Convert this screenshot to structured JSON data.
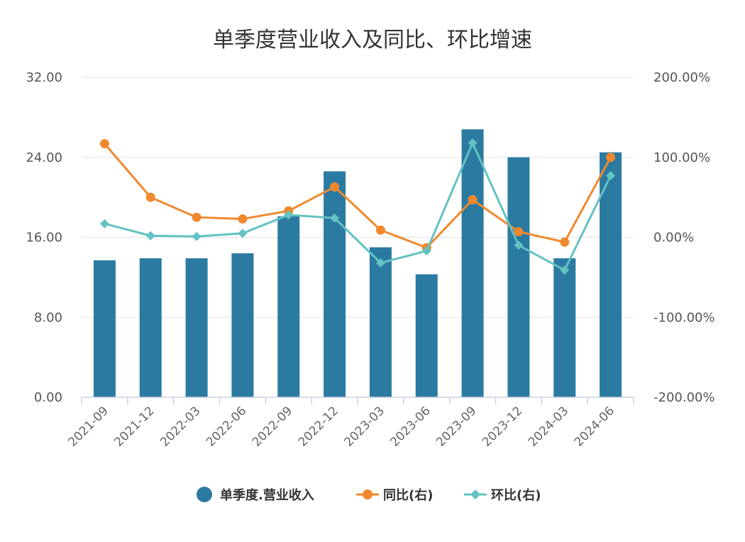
{
  "chart_data": {
    "type": "bar",
    "title": "单季度营业收入及同比、环比增速",
    "categories": [
      "2021-09",
      "2021-12",
      "2022-03",
      "2022-06",
      "2022-09",
      "2022-12",
      "2023-03",
      "2023-06",
      "2023-09",
      "2023-12",
      "2024-03",
      "2024-06"
    ],
    "y_left": {
      "ticks": [
        "0.00",
        "8.00",
        "16.00",
        "24.00",
        "32.00"
      ],
      "range": [
        0,
        32
      ]
    },
    "y_right": {
      "ticks": [
        "-200.00%",
        "-100.00%",
        "0.00%",
        "100.00%",
        "200.00%"
      ],
      "range": [
        -200,
        200
      ]
    },
    "series": [
      {
        "name": "单季度.营业收入",
        "kind": "bar",
        "axis": "left",
        "color": "#2b7aa1",
        "values": [
          13.7,
          13.9,
          13.9,
          14.4,
          18.1,
          22.6,
          15.0,
          12.3,
          26.8,
          24.0,
          13.9,
          24.5
        ]
      },
      {
        "name": "同比(右)",
        "kind": "line",
        "axis": "right",
        "color": "#f0892e",
        "marker": "circle",
        "values": [
          117,
          50,
          25,
          23,
          33,
          63,
          9,
          -13,
          47,
          7,
          -6,
          100
        ]
      },
      {
        "name": "环比(右)",
        "kind": "line",
        "axis": "right",
        "color": "#63c2c2",
        "marker": "diamond",
        "values": [
          17,
          2,
          1,
          5,
          28,
          24,
          -32,
          -17,
          118,
          -10,
          -41,
          77
        ]
      }
    ],
    "legend": {
      "position": "bottom-center",
      "items": [
        "单季度.营业收入",
        "同比(右)",
        "环比(右)"
      ]
    },
    "grid": true
  }
}
